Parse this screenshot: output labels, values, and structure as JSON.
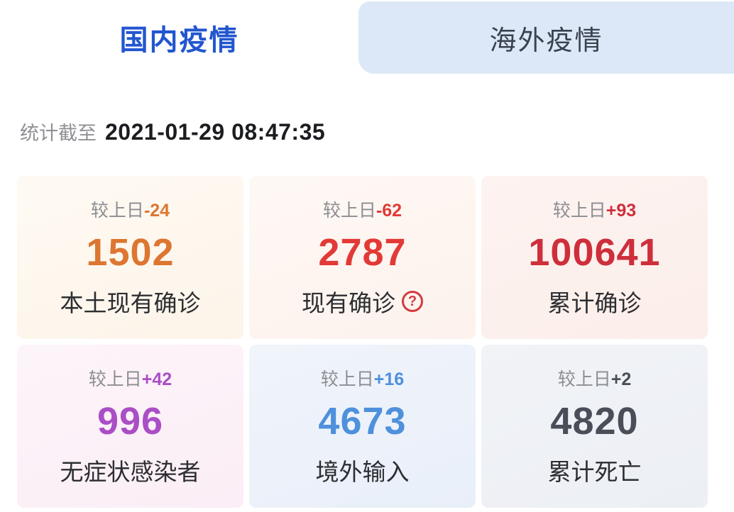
{
  "tabs": {
    "domestic": {
      "label": "国内疫情",
      "active": true,
      "text_color": "#2256d0"
    },
    "overseas": {
      "label": "海外疫情",
      "active": false,
      "text_color": "#3a4250",
      "bg_color": "#dce8f7"
    }
  },
  "stat_time": {
    "prefix": "统计截至",
    "prefix_color": "#8f9095",
    "datetime": "2021-01-29 08:47:35",
    "datetime_color": "#1c1d21"
  },
  "cards": [
    {
      "delta_prefix": "较上日",
      "delta": "-24",
      "value": "1502",
      "label": "本土现有确诊",
      "accent": "#dd7631",
      "delta_prefix_color": "#8b8d92",
      "label_color": "#2d2e32",
      "bg_from": "#fefaf3",
      "bg_to": "#fdf4e9"
    },
    {
      "delta_prefix": "较上日",
      "delta": "-62",
      "value": "2787",
      "label": "现有确诊",
      "help_icon": "?",
      "accent": "#e23a36",
      "delta_prefix_color": "#8b8d92",
      "label_color": "#2d2e32",
      "bg_from": "#fef8f4",
      "bg_to": "#fdf2ed"
    },
    {
      "delta_prefix": "较上日",
      "delta": "+93",
      "value": "100641",
      "label": "累计确诊",
      "accent": "#ce2f3b",
      "delta_prefix_color": "#8b8d92",
      "label_color": "#2d2e32",
      "bg_from": "#fdf3f0",
      "bg_to": "#fceeea"
    },
    {
      "delta_prefix": "较上日",
      "delta": "+42",
      "value": "996",
      "label": "无症状感染者",
      "accent": "#aa4ec6",
      "delta_prefix_color": "#8b8d92",
      "label_color": "#2d2e32",
      "bg_from": "#fdf4f9",
      "bg_to": "#fbeef6"
    },
    {
      "delta_prefix": "较上日",
      "delta": "+16",
      "value": "4673",
      "label": "境外输入",
      "accent": "#4e90dc",
      "delta_prefix_color": "#8b8d92",
      "label_color": "#2d2e32",
      "bg_from": "#f0f4fb",
      "bg_to": "#e9eff9"
    },
    {
      "delta_prefix": "较上日",
      "delta": "+2",
      "value": "4820",
      "label": "累计死亡",
      "accent": "#494e58",
      "delta_prefix_color": "#8b8d92",
      "label_color": "#2d2e32",
      "bg_from": "#f1f3f7",
      "bg_to": "#eceff4"
    }
  ],
  "help_icon_color": "#d33a3f"
}
